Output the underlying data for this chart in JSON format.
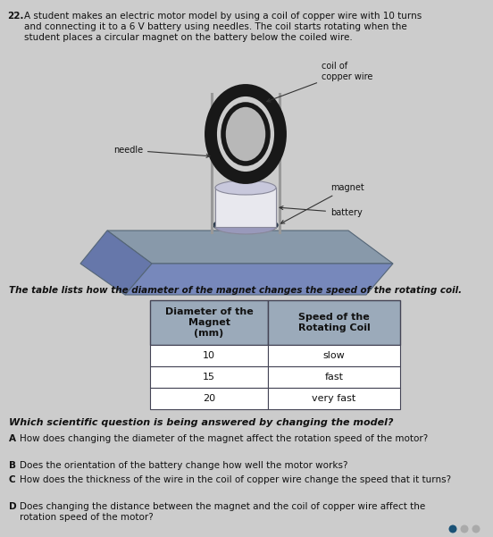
{
  "question_number": "22.",
  "question_text_line1": "A student makes an electric motor model by using a coil of copper wire with 10 turns",
  "question_text_line2": "and connecting it to a 6 V battery using needles. The coil starts rotating when the",
  "question_text_line3": "student places a circular magnet on the battery below the coiled wire.",
  "label_coil": "coil of\ncopper wire",
  "label_needle": "needle",
  "label_magnet": "magnet",
  "label_battery": "battery",
  "table_intro": "The table lists how the diameter of the magnet changes the speed of the rotating coil.",
  "table_header_col1": "Diameter of the\nMagnet\n(mm)",
  "table_header_col2": "Speed of the\nRotating Coil",
  "table_data": [
    [
      "10",
      "slow"
    ],
    [
      "15",
      "fast"
    ],
    [
      "20",
      "very fast"
    ]
  ],
  "question_stem": "Which scientific question is being answered by changing the model?",
  "choices": [
    [
      "A",
      "How does changing the diameter of the magnet affect the rotation speed of the motor?"
    ],
    [
      "B",
      "Does the orientation of the battery change how well the motor works?"
    ],
    [
      "C",
      "How does the thickness of the wire in the coil of copper wire change the speed that it turns?"
    ],
    [
      "D",
      "Does changing the distance between the magnet and the coil of copper wire affect the\nrotation speed of the motor?"
    ]
  ],
  "bg_color": "#cccccc",
  "table_hdr_color": "#9baaba",
  "table_cell_color": "#ffffff",
  "border_color": "#444455",
  "text_color": "#111111",
  "img_bg": "#c8c8c8",
  "platform_color": "#8899aa",
  "platform_color2": "#6677aa",
  "platform_dark": "#6688aa",
  "battery_body": "#e0e0e8",
  "battery_top": "#c8c8dc",
  "battery_bot": "#9999bb",
  "magnet_color": "#334455",
  "magnet_inner": "#667788",
  "coil_color": "#222222",
  "needle_color": "#999999",
  "wire_color": "#555555",
  "dot1_color": "#1a5276",
  "dot2_color": "#aaaaaa"
}
